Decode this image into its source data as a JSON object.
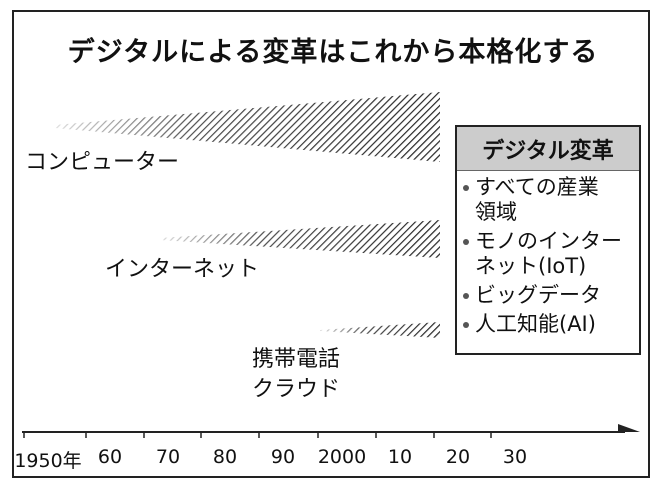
{
  "title": "デジタルによる変革はこれから本格化する",
  "streams": [
    {
      "lines": [
        "コンピューター"
      ]
    },
    {
      "lines": [
        "インターネット"
      ]
    },
    {
      "lines": [
        "携帯電話",
        "クラウド"
      ]
    }
  ],
  "box": {
    "heading": "デジタル変革",
    "items": [
      [
        "すべての産業",
        "領域"
      ],
      [
        "モノのインター",
        "ネット(IoT)"
      ],
      [
        "ビッグデータ"
      ],
      [
        "人工知能(AI)"
      ]
    ]
  },
  "timeline": [
    "1950年",
    "60",
    "70",
    "80",
    "90",
    "2000",
    "10",
    "20",
    "30"
  ]
}
